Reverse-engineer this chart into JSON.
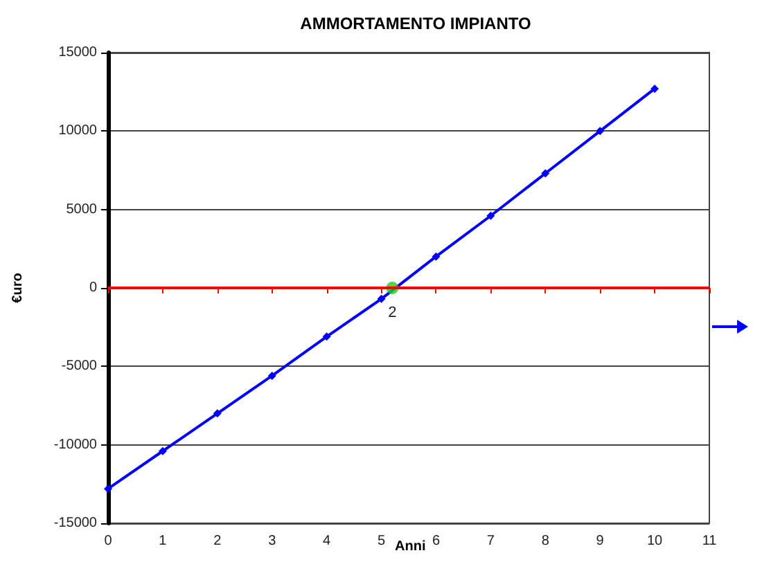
{
  "chart_data": {
    "type": "line",
    "title": "AMMORTAMENTO IMPIANTO",
    "ylabel": "€uro",
    "series": [
      {
        "color": "#0000ff",
        "marker": "diamond",
        "x": [
          0,
          1,
          2,
          3,
          4,
          5,
          6,
          7,
          8,
          9,
          10
        ],
        "values": [
          -12800,
          -10400,
          -8000,
          -5600,
          -3100,
          -700,
          2000,
          4600,
          7300,
          10000,
          12700
        ]
      },
      {
        "type": "scatter",
        "marker": "circle",
        "color": "#22cc22",
        "x": [
          5.2
        ],
        "values": [
          0
        ]
      }
    ],
    "annotations": [
      {
        "text": "2",
        "x": 5.2,
        "y": 0
      },
      "Anni"
    ],
    "ref_lines": [
      {
        "axis": "y",
        "value": 0,
        "color": "#ff0000"
      }
    ],
    "xlim": [
      0,
      11
    ],
    "xticks": [
      0,
      1,
      2,
      3,
      4,
      5,
      6,
      7,
      8,
      9,
      10,
      11
    ],
    "ylim": [
      -15000,
      15000
    ],
    "yticks": [
      -15000,
      -10000,
      -5000,
      0,
      5000,
      10000,
      15000
    ],
    "grid": "y",
    "line_style": "solid"
  }
}
